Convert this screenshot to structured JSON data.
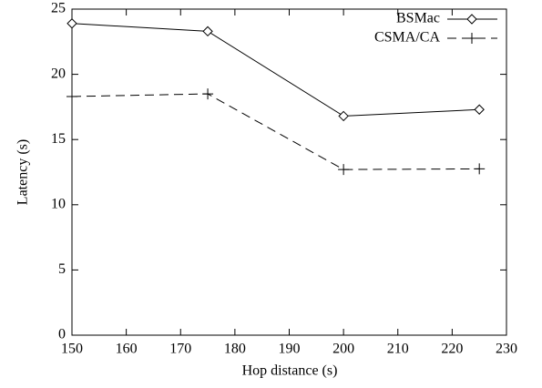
{
  "chart_data": {
    "type": "line",
    "x_label": "Hop distance (s)",
    "y_label": "Latency (s)",
    "x": [
      150,
      175,
      200,
      225
    ],
    "series": [
      {
        "name": "BSMac",
        "color": "#000000",
        "marker": "diamond",
        "dash": "solid",
        "values": [
          23.9,
          23.3,
          16.8,
          17.3
        ]
      },
      {
        "name": "CSMA/CA",
        "color": "#000000",
        "marker": "plus",
        "dash": "dashed",
        "values": [
          18.3,
          18.5,
          12.7,
          12.75
        ]
      }
    ],
    "xlim": [
      150,
      230
    ],
    "xticks": [
      150,
      160,
      170,
      180,
      190,
      200,
      210,
      220,
      230
    ],
    "ylim": [
      0,
      25
    ],
    "yticks": [
      0,
      5,
      10,
      15,
      20,
      25
    ],
    "grid": false,
    "legend": "top-right"
  }
}
